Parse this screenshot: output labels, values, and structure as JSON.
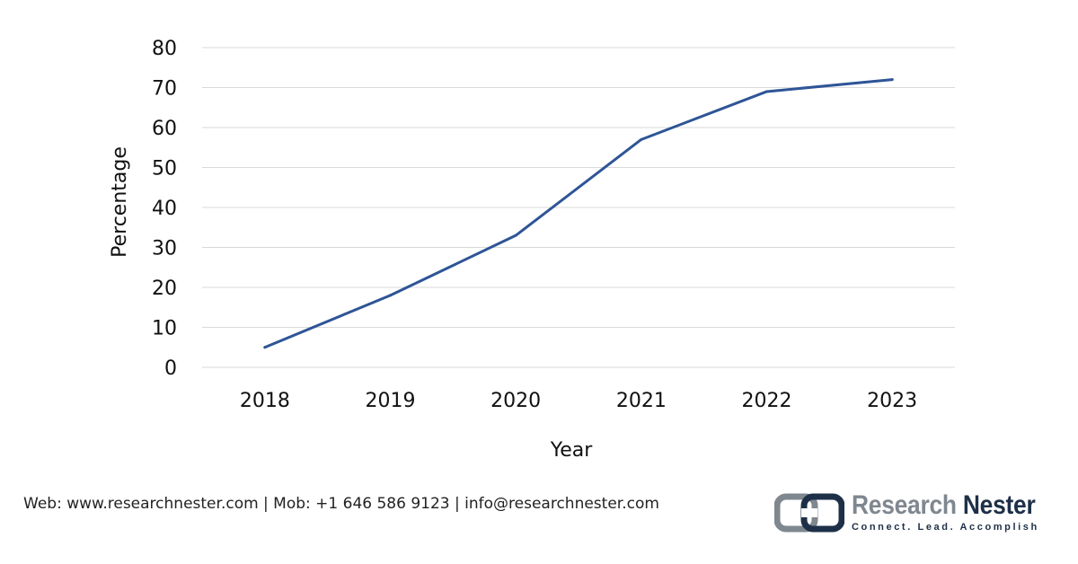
{
  "chart_data": {
    "type": "line",
    "title": "",
    "xlabel": "Year",
    "ylabel": "Percentage",
    "categories": [
      "2018",
      "2019",
      "2020",
      "2021",
      "2022",
      "2023"
    ],
    "series": [
      {
        "values": [
          5,
          18,
          33,
          57,
          69,
          72
        ],
        "color": "#2e5596"
      }
    ],
    "ylim": [
      0,
      80
    ],
    "yticks": [
      0,
      10,
      20,
      30,
      40,
      50,
      60,
      70,
      80
    ],
    "grid": "horizontal",
    "legend": "none"
  },
  "footer": {
    "contact": "Web: www.researchnester.com | Mob: +1 646 586 9123 | info@researchnester.com"
  },
  "logo": {
    "name_part1": "Research",
    "name_part2": "Nester",
    "tagline": "Connect. Lead. Accomplish",
    "colors": {
      "dark": "#1e3048",
      "grey": "#7f878f"
    }
  }
}
